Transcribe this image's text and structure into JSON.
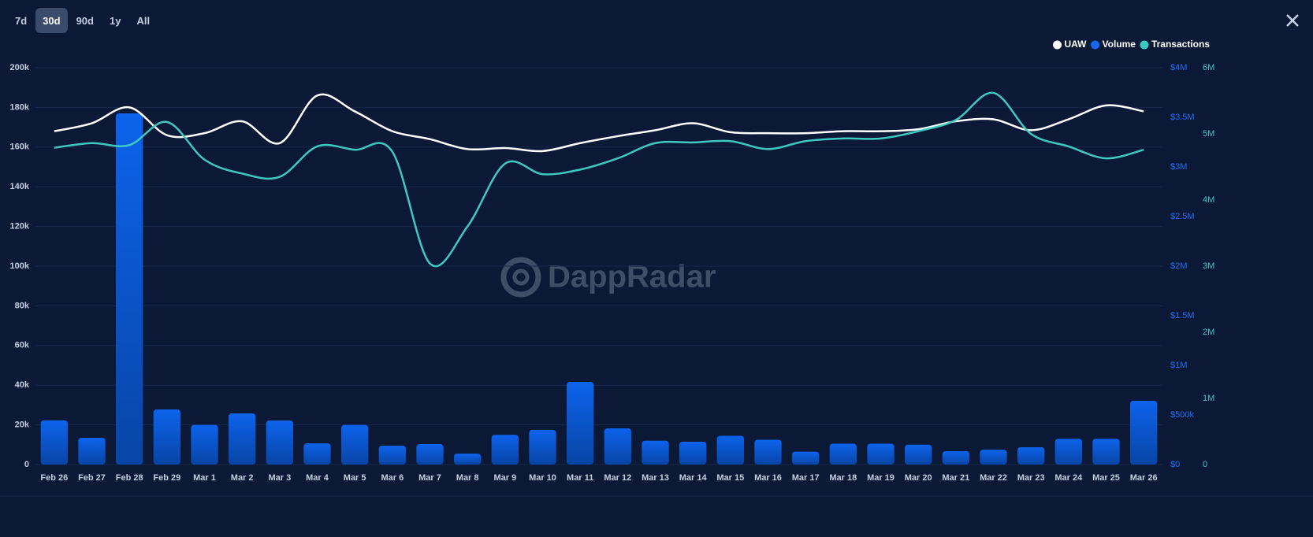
{
  "ui": {
    "tabs": [
      "7d",
      "30d",
      "90d",
      "1y",
      "All"
    ],
    "active_tab_index": 1,
    "watermark": "DappRadar"
  },
  "chart_data": {
    "type": "bar-line",
    "categories": [
      "Feb 26",
      "Feb 27",
      "Feb 28",
      "Feb 29",
      "Mar 1",
      "Mar 2",
      "Mar 3",
      "Mar 4",
      "Mar 5",
      "Mar 6",
      "Mar 7",
      "Mar 8",
      "Mar 9",
      "Mar 10",
      "Mar 11",
      "Mar 12",
      "Mar 13",
      "Mar 14",
      "Mar 15",
      "Mar 16",
      "Mar 17",
      "Mar 18",
      "Mar 19",
      "Mar 20",
      "Mar 21",
      "Mar 22",
      "Mar 23",
      "Mar 24",
      "Mar 25",
      "Mar 26"
    ],
    "series": [
      {
        "name": "UAW",
        "type": "line",
        "axis": "y",
        "color": "#ffffff",
        "values": [
          168000,
          172000,
          180000,
          166000,
          167000,
          173000,
          162000,
          186000,
          178000,
          168000,
          164000,
          159000,
          159500,
          158000,
          162000,
          165500,
          168500,
          172000,
          167500,
          167000,
          167000,
          168000,
          168000,
          169000,
          173000,
          174000,
          168500,
          174000,
          181000,
          178000
        ]
      },
      {
        "name": "Volume",
        "type": "bar",
        "axis": "y2",
        "color": "#0a4fb8",
        "values": [
          445000,
          270000,
          3540000,
          556000,
          400000,
          516000,
          444000,
          214000,
          400000,
          190000,
          206000,
          110000,
          300000,
          350000,
          833000,
          365000,
          240000,
          230000,
          290000,
          250000,
          130000,
          210000,
          210000,
          200000,
          135000,
          150000,
          175000,
          260000,
          260000,
          643000
        ]
      },
      {
        "name": "Transactions",
        "type": "line",
        "axis": "y3",
        "color": "#3ec9c0",
        "values": [
          4790000,
          4860000,
          4830000,
          5180000,
          4610000,
          4400000,
          4350000,
          4810000,
          4760000,
          4730000,
          3040000,
          3600000,
          4550000,
          4390000,
          4460000,
          4630000,
          4860000,
          4870000,
          4890000,
          4770000,
          4890000,
          4930000,
          4930000,
          5040000,
          5210000,
          5620000,
          5000000,
          4810000,
          4630000,
          4760000
        ]
      }
    ],
    "ylim": [
      0,
      200000
    ],
    "yticks": [
      0,
      {
        "value": 20000,
        "label": "20k"
      },
      {
        "value": 40000,
        "label": "40k"
      },
      {
        "value": 60000,
        "label": "60k"
      },
      {
        "value": 80000,
        "label": "80k"
      },
      {
        "value": 100000,
        "label": "100k"
      },
      {
        "value": 120000,
        "label": "120k"
      },
      {
        "value": 140000,
        "label": "140k"
      },
      {
        "value": 160000,
        "label": "160k"
      },
      {
        "value": 180000,
        "label": "180k"
      },
      {
        "value": 200000,
        "label": "200k"
      }
    ],
    "y2lim": [
      0,
      4000000
    ],
    "y2ticks": [
      {
        "value": 0,
        "label": "$0"
      },
      {
        "value": 500000,
        "label": "$500k"
      },
      {
        "value": 1000000,
        "label": "$1M"
      },
      {
        "value": 1500000,
        "label": "$1.5M"
      },
      {
        "value": 2000000,
        "label": "$2M"
      },
      {
        "value": 2500000,
        "label": "$2.5M"
      },
      {
        "value": 3000000,
        "label": "$3M"
      },
      {
        "value": 3500000,
        "label": "$3.5M"
      },
      {
        "value": 4000000,
        "label": "$4M"
      }
    ],
    "y3lim": [
      0,
      6000000
    ],
    "y3ticks": [
      0,
      {
        "value": 1000000,
        "label": "1M"
      },
      {
        "value": 2000000,
        "label": "2M"
      },
      {
        "value": 3000000,
        "label": "3M"
      },
      {
        "value": 4000000,
        "label": "4M"
      },
      {
        "value": 5000000,
        "label": "5M"
      },
      {
        "value": 6000000,
        "label": "6M"
      }
    ],
    "grid": true,
    "legend": "top-right"
  }
}
